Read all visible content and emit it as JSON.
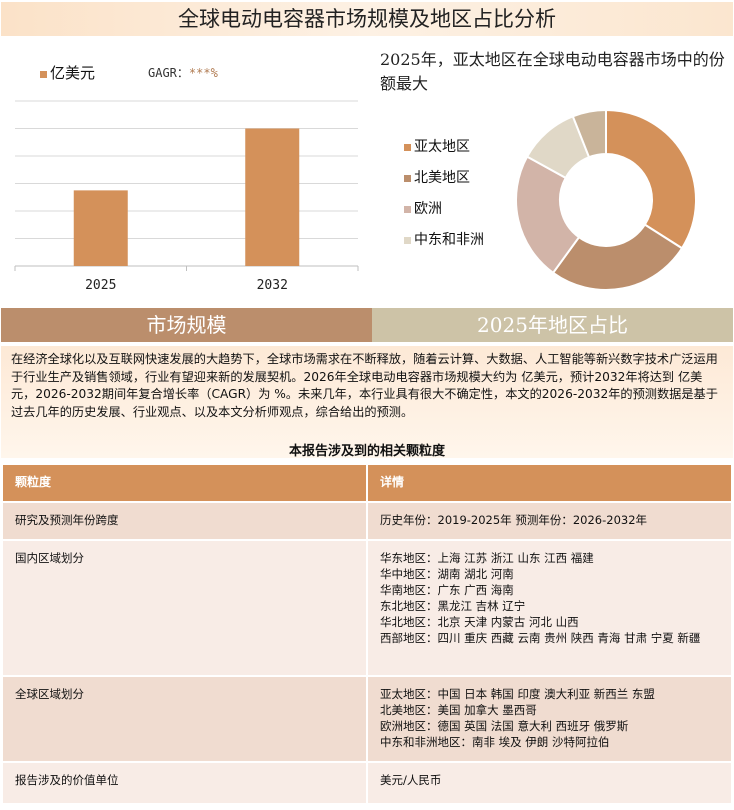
{
  "title": "全球电动电容器市场规模及地区占比分析",
  "bar_legend": "亿美元",
  "gagr_label": "GAGR：",
  "gagr_value": "***%",
  "pie_title": "2025年，亚太地区在全球电动电容器市场中的份额最大",
  "tabs": [
    "市场规模",
    "2025年地区占比"
  ],
  "description": "在经济全球化以及互联网快速发展的大趋势下，全球市场需求在不断释放，随着云计算、大数据、人工智能等新兴数字技术广泛运用于行业生产及销售领域，行业有望迎来新的发展契机。2026年全球电动电容器市场规模大约为 亿美元，预计2032年将达到 亿美元，2026-2032期间年复合增长率（CAGR）为 %。未来几年，本行业具有很大不确定性，本文的2026-2032年的预测数据是基于过去几年的历史发展、行业观点、以及本文分析师观点，综合给出的预测。",
  "table_title": "本报告涉及到的相关颗粒度",
  "table": {
    "headers": [
      "颗粒度",
      "详情"
    ],
    "rows": [
      {
        "label": "研究及预测年份跨度",
        "lines": [
          "历史年份：2019-2025年 预测年份：2026-2032年"
        ]
      },
      {
        "label": "国内区域划分",
        "lines": [
          "华东地区：上海  江苏  浙江  山东  江西  福建",
          "华中地区：湖南  湖北  河南",
          "华南地区：广东  广西  海南",
          "东北地区：黑龙江  吉林  辽宁",
          "华北地区：北京  天津  内蒙古  河北  山西",
          "西部地区：四川  重庆  西藏  云南  贵州  陕西  青海  甘肃  宁夏  新疆"
        ]
      },
      {
        "label": "全球区域划分",
        "lines": [
          "亚太地区：中国  日本  韩国  印度  澳大利亚  新西兰  东盟",
          "北美地区：美国  加拿大  墨西哥",
          "欧洲地区：德国  英国  法国  意大利  西班牙  俄罗斯",
          "中东和非洲地区：南非  埃及  伊朗  沙特阿拉伯"
        ]
      },
      {
        "label": "报告涉及的价值单位",
        "lines": [
          "美元/人民币"
        ]
      }
    ]
  },
  "chart_data": [
    {
      "type": "bar",
      "categories": [
        "2025",
        "2032"
      ],
      "values": [
        2.75,
        5
      ],
      "ylim": [
        0,
        6
      ],
      "grid": true,
      "series": [
        {
          "name": "亿美元",
          "values": [
            2.75,
            5
          ]
        }
      ],
      "color": "#d4915a"
    },
    {
      "type": "pie",
      "donut": true,
      "categories": [
        "亚太地区",
        "北美地区",
        "欧洲",
        "中东和非洲",
        ""
      ],
      "values": [
        34,
        26,
        23,
        11,
        6
      ],
      "colors": [
        "#d4915a",
        "#bb8e6c",
        "#d2b4a8",
        "#e0d8c7",
        "#c9b49a"
      ],
      "legend": "left"
    }
  ],
  "colors": {
    "tab_left": "#bb8e6c",
    "tab_right": "#cdc3a7",
    "header": "#d4915a",
    "row_a": "#f0dcd0",
    "row_b": "#f8ece6"
  }
}
